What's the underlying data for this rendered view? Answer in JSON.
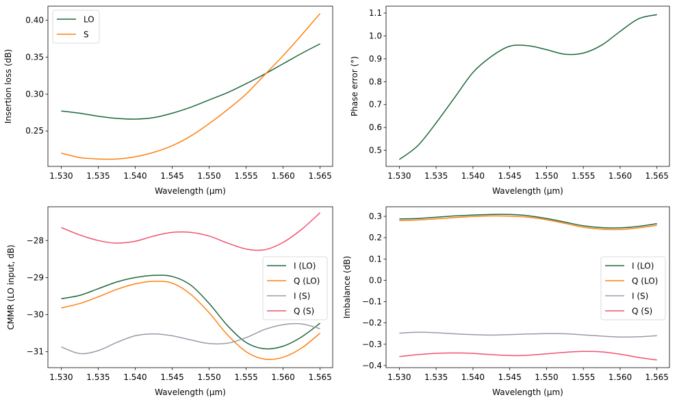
{
  "colors": {
    "I_LO": "#1b6638",
    "Q_LO": "#ff7f0e",
    "I_S": "#9b98a8",
    "Q_S": "#f24f6e"
  },
  "chart_data": [
    {
      "type": "line",
      "xlabel": "Wavelength (µm)",
      "ylabel": "Insertion loss (dB)",
      "xlim": [
        1.5282,
        1.5667
      ],
      "ylim": [
        0.202,
        0.419
      ],
      "xticks": [
        "1.530",
        "1.535",
        "1.540",
        "1.545",
        "1.550",
        "1.555",
        "1.560",
        "1.565"
      ],
      "yticks": [
        "0.25",
        "0.30",
        "0.35",
        "0.40"
      ],
      "legend": "upper-left",
      "x": [
        1.53,
        1.5325,
        1.535,
        1.5375,
        1.54,
        1.5425,
        1.545,
        1.5475,
        1.55,
        1.5525,
        1.555,
        1.5575,
        1.56,
        1.5625,
        1.565
      ],
      "series": [
        {
          "name": "LO",
          "color": "#1b6638",
          "values": [
            0.277,
            0.274,
            0.27,
            0.267,
            0.266,
            0.268,
            0.274,
            0.282,
            0.292,
            0.302,
            0.314,
            0.327,
            0.341,
            0.355,
            0.368
          ]
        },
        {
          "name": "S",
          "color": "#ff7f0e",
          "values": [
            0.22,
            0.214,
            0.212,
            0.212,
            0.215,
            0.221,
            0.23,
            0.243,
            0.26,
            0.279,
            0.3,
            0.326,
            0.352,
            0.38,
            0.409
          ]
        }
      ]
    },
    {
      "type": "line",
      "xlabel": "Wavelength (µm)",
      "ylabel": "Phase error (°)",
      "xlim": [
        1.5282,
        1.5667
      ],
      "ylim": [
        0.43,
        1.13
      ],
      "xticks": [
        "1.530",
        "1.535",
        "1.540",
        "1.545",
        "1.550",
        "1.555",
        "1.560",
        "1.565"
      ],
      "yticks": [
        "0.5",
        "0.6",
        "0.7",
        "0.8",
        "0.9",
        "1.0",
        "1.1"
      ],
      "legend": "none",
      "x": [
        1.53,
        1.5325,
        1.535,
        1.5375,
        1.54,
        1.5425,
        1.545,
        1.5475,
        1.55,
        1.5525,
        1.555,
        1.5575,
        1.56,
        1.5625,
        1.565
      ],
      "series": [
        {
          "color": "#1b6638",
          "values": [
            0.46,
            0.52,
            0.62,
            0.73,
            0.84,
            0.91,
            0.955,
            0.957,
            0.94,
            0.92,
            0.925,
            0.96,
            1.02,
            1.075,
            1.093
          ]
        }
      ]
    },
    {
      "type": "line",
      "xlabel": "Wavelength (µm)",
      "ylabel": "CMMR (LO input, dB)",
      "xlim": [
        1.5282,
        1.5667
      ],
      "ylim": [
        -31.43,
        -27.09
      ],
      "xticks": [
        "1.530",
        "1.535",
        "1.540",
        "1.545",
        "1.550",
        "1.555",
        "1.560",
        "1.565"
      ],
      "yticks": [
        "−31",
        "−30",
        "−29",
        "−28"
      ],
      "legend": "center-right",
      "x": [
        1.53,
        1.5325,
        1.535,
        1.5375,
        1.54,
        1.5425,
        1.545,
        1.5475,
        1.55,
        1.5525,
        1.555,
        1.5575,
        1.56,
        1.5625,
        1.565
      ],
      "series": [
        {
          "name": "I (LO)",
          "color": "#1b6638",
          "values": [
            -29.57,
            -29.48,
            -29.3,
            -29.12,
            -29.0,
            -28.94,
            -28.97,
            -29.2,
            -29.7,
            -30.3,
            -30.75,
            -30.92,
            -30.85,
            -30.6,
            -30.23
          ]
        },
        {
          "name": "Q (LO)",
          "color": "#ff7f0e",
          "values": [
            -29.82,
            -29.7,
            -29.52,
            -29.32,
            -29.17,
            -29.1,
            -29.15,
            -29.45,
            -29.95,
            -30.55,
            -31.0,
            -31.2,
            -31.15,
            -30.9,
            -30.5
          ]
        },
        {
          "name": "I (S)",
          "color": "#9b98a8",
          "values": [
            -30.87,
            -31.05,
            -30.97,
            -30.75,
            -30.57,
            -30.52,
            -30.57,
            -30.68,
            -30.78,
            -30.77,
            -30.62,
            -30.4,
            -30.27,
            -30.25,
            -30.38
          ]
        },
        {
          "name": "Q (S)",
          "color": "#f24f6e",
          "values": [
            -27.65,
            -27.85,
            -28.0,
            -28.07,
            -28.02,
            -27.88,
            -27.78,
            -27.78,
            -27.88,
            -28.07,
            -28.23,
            -28.25,
            -28.05,
            -27.7,
            -27.25
          ]
        }
      ]
    },
    {
      "type": "line",
      "xlabel": "Wavelength (µm)",
      "ylabel": "Imbalance (dB)",
      "xlim": [
        1.5282,
        1.5667
      ],
      "ylim": [
        -0.41,
        0.345
      ],
      "xticks": [
        "1.530",
        "1.535",
        "1.540",
        "1.545",
        "1.550",
        "1.555",
        "1.560",
        "1.565"
      ],
      "yticks": [
        "−0.4",
        "−0.3",
        "−0.2",
        "−0.1",
        "0.0",
        "0.1",
        "0.2",
        "0.3"
      ],
      "legend": "center-right",
      "x": [
        1.53,
        1.5325,
        1.535,
        1.5375,
        1.54,
        1.5425,
        1.545,
        1.5475,
        1.55,
        1.5525,
        1.555,
        1.5575,
        1.56,
        1.5625,
        1.565
      ],
      "series": [
        {
          "name": "I (LO)",
          "color": "#1b6638",
          "values": [
            0.288,
            0.29,
            0.296,
            0.302,
            0.306,
            0.309,
            0.309,
            0.303,
            0.29,
            0.273,
            0.256,
            0.247,
            0.246,
            0.253,
            0.266
          ]
        },
        {
          "name": "Q (LO)",
          "color": "#ff7f0e",
          "values": [
            0.28,
            0.283,
            0.288,
            0.294,
            0.299,
            0.302,
            0.301,
            0.296,
            0.284,
            0.267,
            0.249,
            0.24,
            0.238,
            0.246,
            0.258
          ]
        },
        {
          "name": "I (S)",
          "color": "#9b98a8",
          "values": [
            -0.248,
            -0.244,
            -0.246,
            -0.251,
            -0.255,
            -0.257,
            -0.255,
            -0.252,
            -0.25,
            -0.251,
            -0.256,
            -0.262,
            -0.266,
            -0.265,
            -0.26
          ]
        },
        {
          "name": "Q (S)",
          "color": "#f24f6e",
          "values": [
            -0.358,
            -0.349,
            -0.343,
            -0.341,
            -0.343,
            -0.349,
            -0.353,
            -0.352,
            -0.345,
            -0.338,
            -0.334,
            -0.336,
            -0.347,
            -0.362,
            -0.374
          ]
        }
      ]
    }
  ]
}
